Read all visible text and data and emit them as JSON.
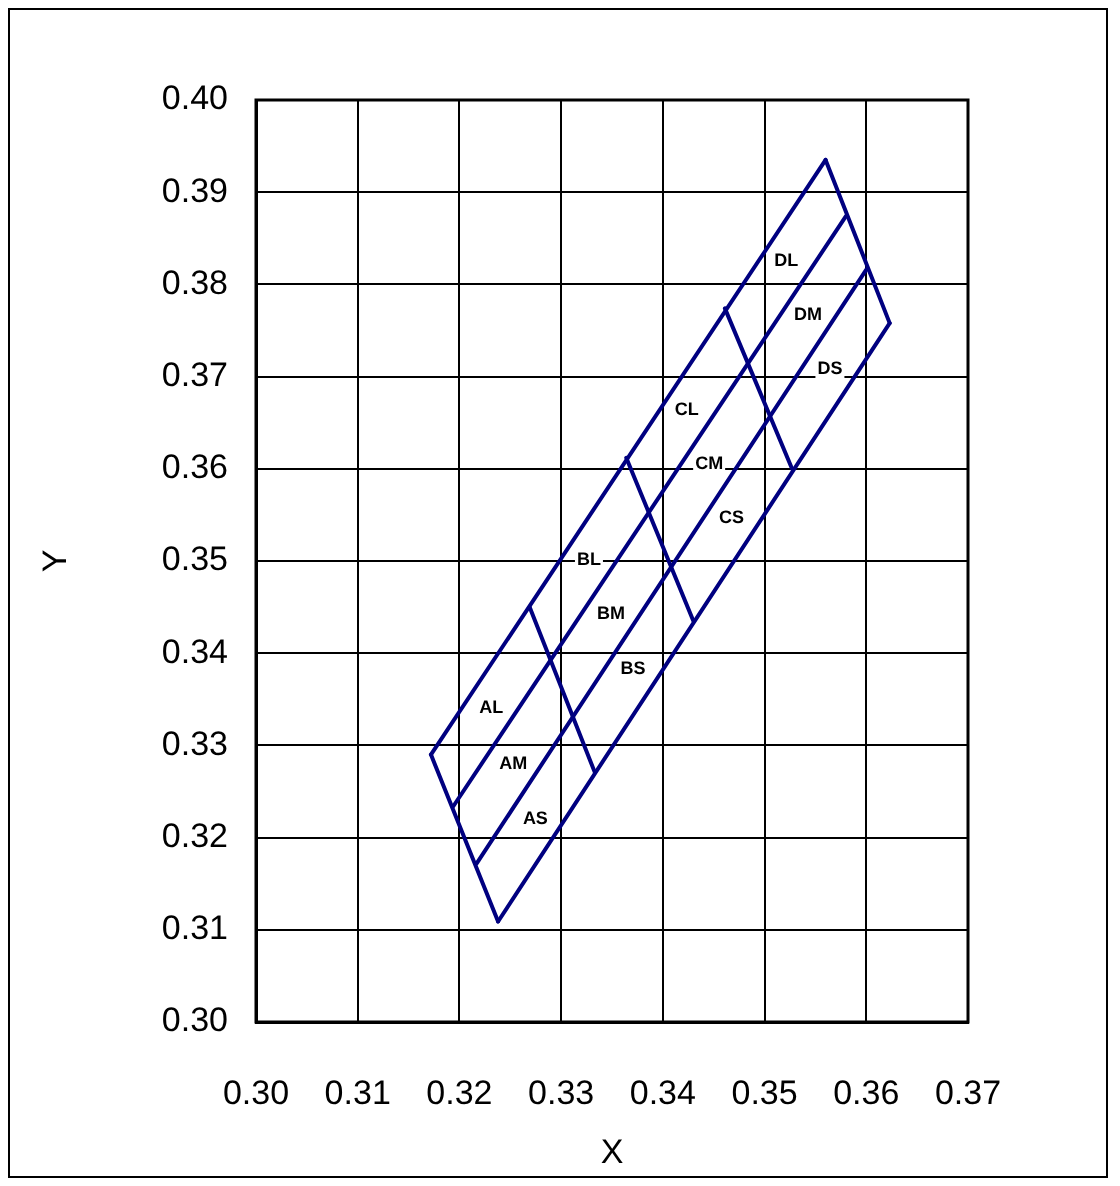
{
  "chart_data": {
    "type": "line",
    "xlabel": "X",
    "ylabel": "Y",
    "xlim": [
      0.3,
      0.37
    ],
    "ylim": [
      0.3,
      0.4
    ],
    "xticks": [
      {
        "value": 0.3,
        "label": "0.30"
      },
      {
        "value": 0.31,
        "label": "0.31"
      },
      {
        "value": 0.32,
        "label": "0.32"
      },
      {
        "value": 0.33,
        "label": "0.33"
      },
      {
        "value": 0.34,
        "label": "0.34"
      },
      {
        "value": 0.35,
        "label": "0.35"
      },
      {
        "value": 0.36,
        "label": "0.36"
      },
      {
        "value": 0.37,
        "label": "0.37"
      }
    ],
    "yticks": [
      {
        "value": 0.3,
        "label": "0.30"
      },
      {
        "value": 0.31,
        "label": "0.31"
      },
      {
        "value": 0.32,
        "label": "0.32"
      },
      {
        "value": 0.33,
        "label": "0.33"
      },
      {
        "value": 0.34,
        "label": "0.34"
      },
      {
        "value": 0.35,
        "label": "0.35"
      },
      {
        "value": 0.36,
        "label": "0.36"
      },
      {
        "value": 0.37,
        "label": "0.37"
      },
      {
        "value": 0.38,
        "label": "0.38"
      },
      {
        "value": 0.39,
        "label": "0.39"
      },
      {
        "value": 0.4,
        "label": "0.40"
      }
    ],
    "grid": true,
    "legend": false,
    "marker": "none",
    "line_style": "solid",
    "series": [
      {
        "color": "#000080",
        "x": [
          0.3172,
          0.356
        ],
        "values": [
          0.329,
          0.3935
        ]
      },
      {
        "color": "#000080",
        "x": [
          0.3194,
          0.358
        ],
        "values": [
          0.3234,
          0.3874
        ]
      },
      {
        "color": "#000080",
        "x": [
          0.3217,
          0.36
        ],
        "values": [
          0.3172,
          0.3816
        ]
      },
      {
        "color": "#000080",
        "x": [
          0.3238,
          0.3623
        ],
        "values": [
          0.3109,
          0.3758
        ]
      },
      {
        "color": "#000080",
        "x": [
          0.3172,
          0.3238
        ],
        "values": [
          0.329,
          0.3109
        ]
      },
      {
        "color": "#000080",
        "x": [
          0.3269,
          0.3333
        ],
        "values": [
          0.345,
          0.3271
        ]
      },
      {
        "color": "#000080",
        "x": [
          0.3364,
          0.343
        ],
        "values": [
          0.3612,
          0.3435
        ]
      },
      {
        "color": "#000080",
        "x": [
          0.3461,
          0.3527
        ],
        "values": [
          0.3774,
          0.36
        ]
      },
      {
        "color": "#000080",
        "x": [
          0.356,
          0.3623
        ],
        "values": [
          0.3935,
          0.3758
        ]
      }
    ],
    "annotations": [
      "DL",
      "DM",
      "DS",
      "CL",
      "CM",
      "CS",
      "BL",
      "BM",
      "BS",
      "AL",
      "AM",
      "AS"
    ]
  }
}
